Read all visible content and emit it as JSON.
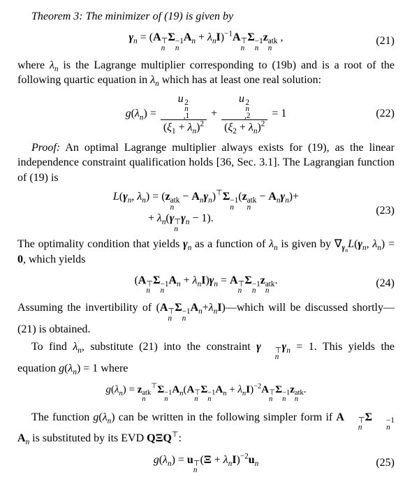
{
  "theorem": {
    "label": "Theorem 3:",
    "text": "The minimizer of (19) is given by"
  },
  "eq21": {
    "num": "(21)",
    "lhs": "γ",
    "sub": "n",
    "body_html": "<span class='ital bold'>γ</span><sub><span class='ital'>n</span></sub> = (<span class='bold'>A</span><span class='supsub'><span>⊤</span><span class='ital'>n</span></span><span class='bold'>Σ</span><span class='supsub'><span>−1</span><span class='ital'>n</span></span><span class='bold'>A</span><sub><span class='ital'>n</span></sub> + <span class='ital'>λ</span><sub><span class='ital'>n</span></sub><span class='bold'>I</span>)<sup>−1</sup><span class='bold'>A</span><span class='supsub'><span>⊤</span><span class='ital'>n</span></span><span class='bold'>Σ</span><span class='supsub'><span>−1</span><span class='ital'>n</span></span><span class='bold'>z</span><span class='supsub'><span>atk</span><span class='ital'>n</span></span> ,"
  },
  "para_after21": "where <span class='ital'>λ<sub>n</sub></span> is the Lagrange multiplier corresponding to (19b) and is a root of the following quartic equation in <span class='ital'>λ<sub>n</sub></span> which has at least one real solution:",
  "eq22": {
    "num": "(22)",
    "body_html": "<span class='ital'>g</span>(<span class='ital'>λ</span><sub><span class='ital'>n</span></sub>) = <span class='frac'><span class='num'><span class='ital'>u</span><span class='supsub'><span>2</span><span class='ital'>n</span>,1</span></span><span class='den'>(<span class='ital'>ξ</span><sub>1</sub> + <span class='ital'>λ</span><sub><span class='ital'>n</span></sub>)<sup>2</sup></span></span> + <span class='frac'><span class='num'><span class='ital'>u</span><span class='supsub'><span>2</span><span class='ital'>n</span>,2</span></span><span class='den'>(<span class='ital'>ξ</span><sub>2</sub> + <span class='ital'>λ</span><sub><span class='ital'>n</span></sub>)<sup>2</sup></span></span> = 1"
  },
  "proof": {
    "label": "Proof:",
    "para1": "An optimal Lagrange multiplier always exists for (19), as the linear independence constraint qualification holds [36, Sec. 3.1]. The Lagrangian function of (19) is"
  },
  "eq23": {
    "num": "(23)",
    "line1_html": "<span class='ital'>L</span>(<span class='ital bold'>γ</span><sub><span class='ital'>n</span></sub>, <span class='ital'>λ</span><sub><span class='ital'>n</span></sub>) = (<span class='bold'>z</span><span class='supsub'><span>atk</span><span class='ital'>n</span></span> − <span class='bold'>A</span><sub><span class='ital'>n</span></sub><span class='ital bold'>γ</span><sub><span class='ital'>n</span></sub>)<sup>⊤</sup><span class='bold'>Σ</span><span class='supsub'><span>−1</span><span class='ital'>n</span></span>(<span class='bold'>z</span><span class='supsub'><span>atk</span><span class='ital'>n</span></span> − <span class='bold'>A</span><sub><span class='ital'>n</span></sub><span class='ital bold'>γ</span><sub><span class='ital'>n</span></sub>)+",
    "line2_html": "+ <span class='ital'>λ</span><sub><span class='ital'>n</span></sub>(<span class='ital bold'>γ</span><span class='supsub'><span>⊤</span><span class='ital'>n</span></span><span class='ital bold'>γ</span><sub><span class='ital'>n</span></sub> − 1)."
  },
  "para_after23": "The optimality condition that yields <span class='ital bold'>γ</span><sub><span class='ital'>n</span></sub> as a function of <span class='ital'>λ<sub>n</sub></span> is given by ∇<sub><span class='ital bold'>γ</span><sub><span class='ital'>n</span></sub></sub><span class='ital'>L</span>(<span class='ital bold'>γ</span><sub><span class='ital'>n</span></sub>, <span class='ital'>λ</span><sub><span class='ital'>n</span></sub>) = <span class='bold'>0</span>, which yields",
  "eq24": {
    "num": "(24)",
    "body_html": "(<span class='bold'>A</span><span class='supsub'><span>⊤</span><span class='ital'>n</span></span><span class='bold'>Σ</span><span class='supsub'><span>−1</span><span class='ital'>n</span></span><span class='bold'>A</span><sub><span class='ital'>n</span></sub> + <span class='ital'>λ</span><sub><span class='ital'>n</span></sub><span class='bold'>I</span>)<span class='ital bold'>γ</span><sub><span class='ital'>n</span></sub> = <span class='bold'>A</span><span class='supsub'><span>⊤</span><span class='ital'>n</span></span><span class='bold'>Σ</span><span class='supsub'><span>−1</span><span class='ital'>n</span></span><span class='bold'>z</span><span class='supsub'><span>atk</span><span class='ital'>n</span></span>."
  },
  "para_after24": "Assuming the invertibility of (<span class='bold'>A</span><span class='supsub'><span>⊤</span><span class='ital'>n</span></span><span class='bold'>Σ</span><span class='supsub'><span>−1</span><span class='ital'>n</span></span><span class='bold'>A</span><sub><span class='ital'>n</span></sub>+<span class='ital'>λ</span><sub><span class='ital'>n</span></sub><span class='bold'>I</span>)—which will be discussed shortly—(21) is obtained.",
  "para_findlambda": "To find <span class='ital'>λ<sub>n</sub></span>, substitute (21) into the constraint <span class='ital bold'>γ</span><span class='supsub'><span>⊤</span><span class='ital'>n</span></span><span class='ital bold'>γ</span><sub><span class='ital'>n</span></sub> = 1. This yields the equation <span class='ital'>g</span>(<span class='ital'>λ<sub>n</sub></span>) = 1 where",
  "eq_g": {
    "body_html": "<span class='ital'>g</span>(<span class='ital'>λ</span><sub><span class='ital'>n</span></sub>) = <span class='bold'>z</span><span class='supsub'><span>atk</span><span class='ital'>n</span></span><sup>⊤</sup><span class='bold'>Σ</span><span class='supsub'><span>−1</span><span class='ital'>n</span></span><span class='bold'>A</span><sub><span class='ital'>n</span></sub>(<span class='bold'>A</span><span class='supsub'><span>⊤</span><span class='ital'>n</span></span><span class='bold'>Σ</span><span class='supsub'><span>−1</span><span class='ital'>n</span></span><span class='bold'>A</span><sub><span class='ital'>n</span></sub> + <span class='ital'>λ</span><sub><span class='ital'>n</span></sub><span class='bold'>I</span>)<sup>−2</sup><span class='bold'>A</span><span class='supsub'><span>⊤</span><span class='ital'>n</span></span><span class='bold'>Σ</span><span class='supsub'><span>−1</span><span class='ital'>n</span></span><span class='bold'>z</span><span class='supsub'><span>atk</span><span class='ital'>n</span></span>."
  },
  "para_simpler": "The function <span class='ital'>g</span>(<span class='ital'>λ<sub>n</sub></span>) can be written in the following simpler form if <span class='bold'>A</span><span class='supsub'><span>⊤</span><span class='ital'>n</span></span><span class='bold'>Σ</span><span class='supsub'><span>−1</span><span class='ital'>n</span></span><span class='bold'>A</span><sub><span class='ital'>n</span></sub> is substituted by its EVD <span class='bold'>QΞQ</span><sup>⊤</sup>:",
  "eq25": {
    "num": "(25)",
    "body_html": "<span class='ital'>g</span>(<span class='ital'>λ</span><sub><span class='ital'>n</span></sub>) = <span class='bold'>u</span><span class='supsub'><span>⊤</span><span class='ital'>n</span></span>(<span class='bold'>Ξ</span> + <span class='ital'>λ</span><sub><span class='ital'>n</span></sub><span class='bold'>I</span>)<sup>−2</sup><span class='bold'>u</span><sub><span class='ital'>n</span></sub>"
  }
}
